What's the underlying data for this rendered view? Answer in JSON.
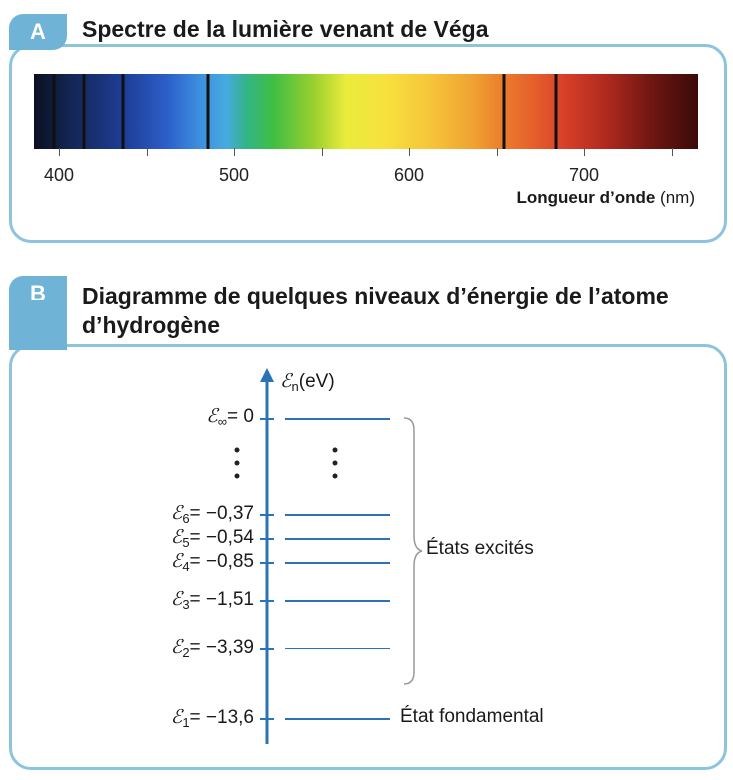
{
  "section_a": {
    "tab": "A",
    "title": "Spectre de la lumière venant de Véga",
    "axis_label_bold": "Longueur d’onde",
    "axis_unit": "(nm)",
    "ticks": [
      "400",
      "500",
      "600",
      "700"
    ]
  },
  "section_b": {
    "tab": "B",
    "title_line1": "Diagramme de quelques niveaux d’énergie de l’atome",
    "title_line2": "d’hydrogène",
    "axis_symbol": "ℰ",
    "axis_sub": "n",
    "axis_unit": "(eV)",
    "levels": [
      {
        "sub": "∞",
        "value": "= 0"
      },
      {
        "sub": "6",
        "value": "= −0,37"
      },
      {
        "sub": "5",
        "value": "= −0,54"
      },
      {
        "sub": "4",
        "value": "= −0,85"
      },
      {
        "sub": "3",
        "value": "= −1,51"
      },
      {
        "sub": "2",
        "value": "= −3,39"
      },
      {
        "sub": "1",
        "value": "= −13,6"
      }
    ],
    "excited_label": "États excités",
    "ground_label": "État fondamental"
  },
  "colors": {
    "frame": "#8cc4de",
    "tab": "#6fb3d6",
    "level": "#2c73b5"
  }
}
